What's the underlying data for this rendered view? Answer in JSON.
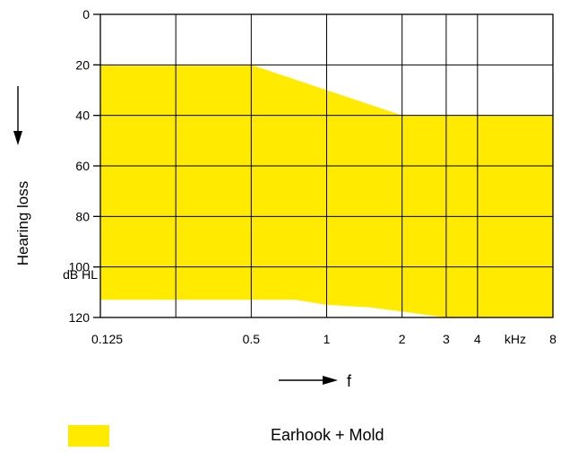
{
  "chart_data": {
    "type": "area",
    "x_scale": "log",
    "xlim": [
      0.125,
      8
    ],
    "ylim": [
      0,
      120
    ],
    "y_inverted": true,
    "ylabel": "Hearing loss",
    "xlabel": "f",
    "y_unit": "dB HL",
    "x_unit": "kHz",
    "y_ticks": [
      "0",
      "20",
      "40",
      "60",
      "80",
      "100",
      "120"
    ],
    "x_tick_labels": [
      {
        "value": 0.125,
        "label": "0.125"
      },
      {
        "value": 0.5,
        "label": "0.5"
      },
      {
        "value": 1,
        "label": "1"
      },
      {
        "value": 2,
        "label": "2"
      },
      {
        "value": 3,
        "label": "3"
      },
      {
        "value": 4,
        "label": "4"
      },
      {
        "value": 8,
        "label": "8"
      }
    ],
    "x_gridlines": [
      0.125,
      0.25,
      0.5,
      1,
      2,
      3,
      4,
      8
    ],
    "grid": true,
    "series": [
      {
        "name": "Earhook + Mold",
        "color": "#FFEA00",
        "upper": {
          "x": [
            0.125,
            0.5,
            2,
            8
          ],
          "y": [
            20,
            20,
            40,
            40
          ]
        },
        "lower": {
          "x": [
            0.125,
            0.75,
            1,
            1.5,
            3,
            8
          ],
          "y": [
            113,
            113,
            115,
            116,
            120,
            120
          ]
        }
      }
    ],
    "legend_position": "bottom"
  }
}
